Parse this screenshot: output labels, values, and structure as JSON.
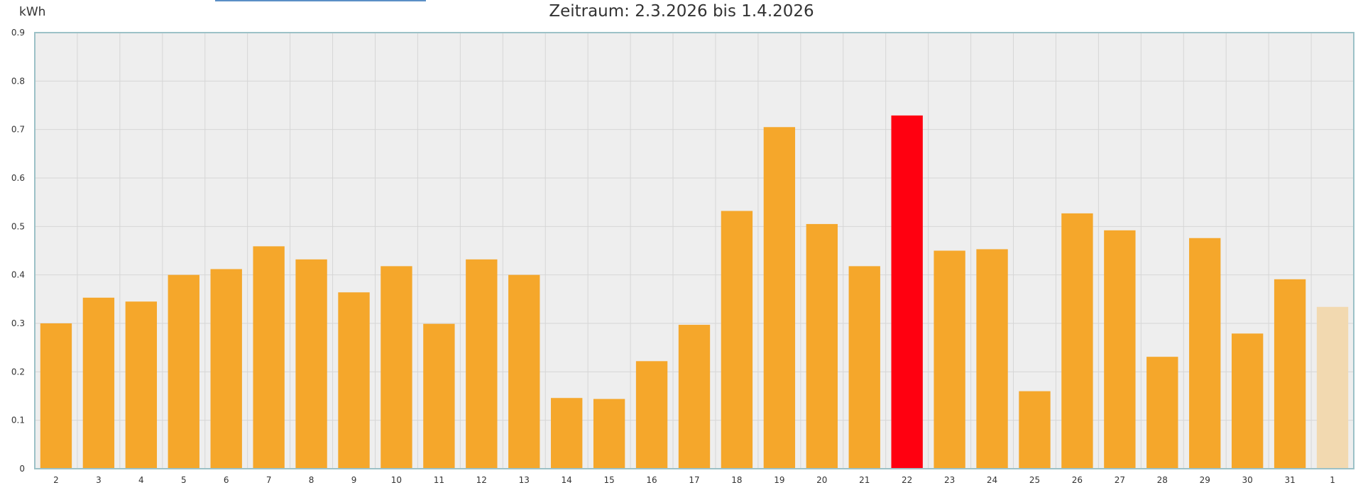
{
  "chart_data": {
    "type": "bar",
    "title": "Zeitraum: 2.3.2026 bis 1.4.2026",
    "ylabel": "kWh",
    "xlabel": "",
    "ylim": [
      0,
      0.9
    ],
    "yticks": [
      "0",
      "0.1",
      "0.2",
      "0.3",
      "0.4",
      "0.5",
      "0.6",
      "0.7",
      "0.8",
      "0.9"
    ],
    "grid": true,
    "categories": [
      "2",
      "3",
      "4",
      "5",
      "6",
      "7",
      "8",
      "9",
      "10",
      "11",
      "12",
      "13",
      "14",
      "15",
      "16",
      "17",
      "18",
      "19",
      "20",
      "21",
      "22",
      "23",
      "24",
      "25",
      "26",
      "27",
      "28",
      "29",
      "30",
      "31",
      "1"
    ],
    "values": [
      0.3,
      0.353,
      0.345,
      0.4,
      0.412,
      0.459,
      0.432,
      0.364,
      0.418,
      0.299,
      0.432,
      0.4,
      0.146,
      0.144,
      0.222,
      0.297,
      0.532,
      0.705,
      0.505,
      0.418,
      0.729,
      0.45,
      0.453,
      0.16,
      0.527,
      0.492,
      0.231,
      0.476,
      0.279,
      0.391,
      0.334
    ],
    "highlight_index": 20,
    "faded_index": 30,
    "colors": {
      "bar": "#f5a72b",
      "highlight": "#ff0010",
      "faded": "#f2d9b0",
      "plot_background": "#eeeeee",
      "grid": "#d6d6d6",
      "border": "#9cc1c7"
    }
  }
}
